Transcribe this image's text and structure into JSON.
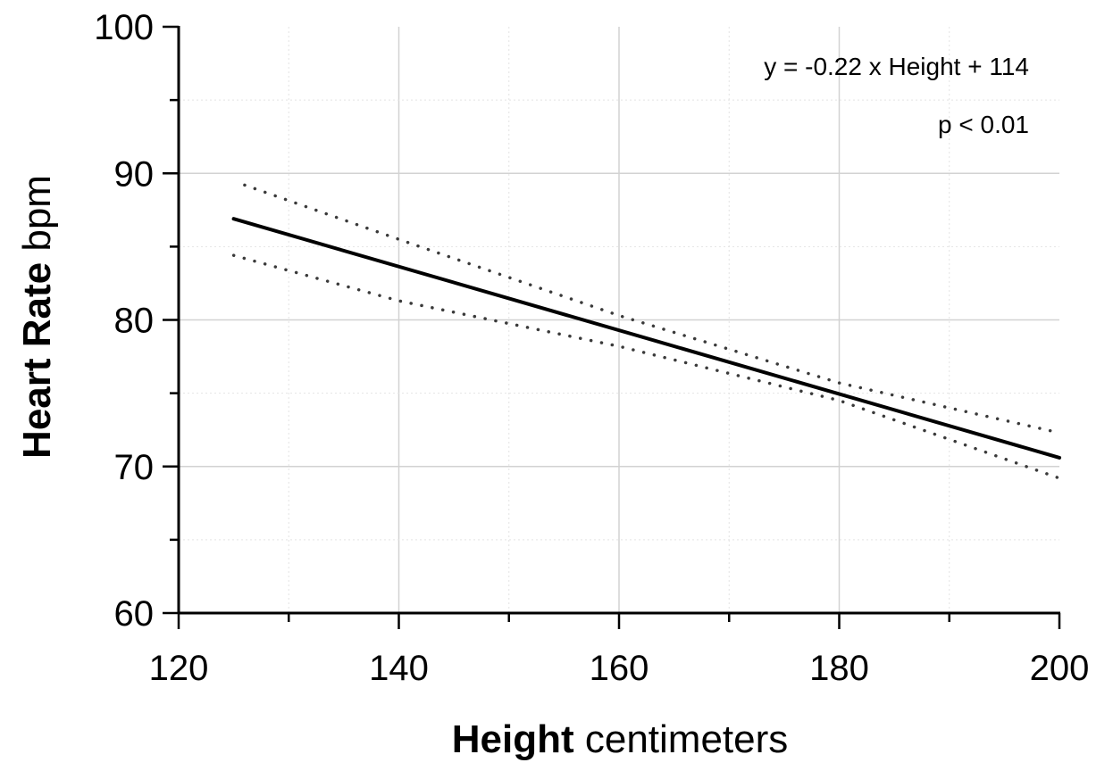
{
  "chart_data": {
    "type": "line",
    "xlabel_bold": "Height",
    "xlabel_rest": " centimeters",
    "ylabel_bold": "Heart Rate",
    "ylabel_rest": " bpm",
    "xlim": [
      120,
      200
    ],
    "ylim": [
      60,
      100
    ],
    "x_ticks": [
      "120",
      "140",
      "160",
      "180",
      "200"
    ],
    "y_ticks": [
      "60",
      "70",
      "80",
      "90",
      "100"
    ],
    "grid": true,
    "annotations": {
      "equation": "y = -0.22 x Height + 114",
      "pvalue": "p < 0.01"
    },
    "series": [
      {
        "style": "solid",
        "x": [
          125,
          200
        ],
        "y": [
          86.9,
          70.6
        ]
      },
      {
        "style": "dotted",
        "x": [
          126,
          140,
          160,
          180,
          200
        ],
        "y": [
          89.2,
          85.5,
          80.3,
          75.7,
          72.3
        ]
      },
      {
        "style": "dotted",
        "x": [
          125,
          140,
          160,
          180,
          200
        ],
        "y": [
          84.4,
          81.3,
          78.2,
          74.5,
          69.2
        ]
      }
    ]
  }
}
